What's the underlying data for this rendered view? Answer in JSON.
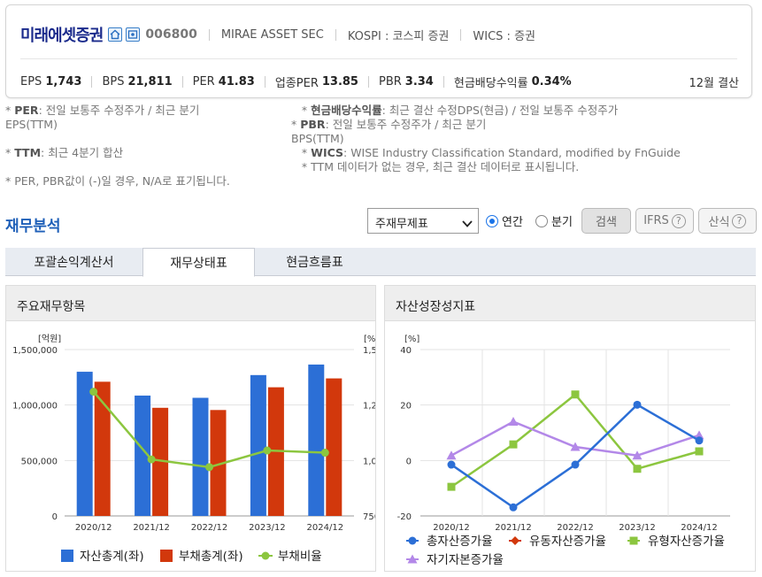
{
  "company": {
    "name": "미래에셋증권",
    "code": "006800",
    "name_en": "MIRAE ASSET SEC",
    "market": "KOSPI : 코스피 증권",
    "wics": "WICS : 증권"
  },
  "metrics": [
    {
      "label": "EPS",
      "value": "1,743"
    },
    {
      "label": "BPS",
      "value": "21,811"
    },
    {
      "label": "PER",
      "value": "41.83"
    },
    {
      "label": "업종PER",
      "value": "13.85"
    },
    {
      "label": "PBR",
      "value": "3.34"
    },
    {
      "label": "현금배당수익률",
      "value": "0.34%"
    }
  ],
  "settlement": "12월 결산",
  "notes": {
    "left": [
      {
        "star": "* ",
        "key": "PER",
        "text": ": 전일 보통주 수정주가 / 최근 분기"
      },
      {
        "star": "",
        "key": "",
        "text": "EPS(TTM)"
      },
      {
        "star": "",
        "key": "",
        "text": ""
      },
      {
        "star": "* ",
        "key": "TTM",
        "text": ": 최근 4분기 합산"
      },
      {
        "star": "",
        "key": "",
        "text": ""
      },
      {
        "star": "",
        "key": "",
        "text": "* PER, PBR값이 (-)일 경우, N/A로 표기됩니다."
      }
    ],
    "right": [
      {
        "star": "   * ",
        "key": "현금배당수익률",
        "text": ": 최근 결산 수정DPS(현금) / 전일 보통주 수정주가"
      },
      {
        "star": "* ",
        "key": "PBR",
        "text": ": 전일 보통주 수정주가 / 최근 분기"
      },
      {
        "star": "",
        "key": "",
        "text": "BPS(TTM)"
      },
      {
        "star": "   * ",
        "key": "WICS",
        "text": ": WISE Industry Classification Standard, modified by FnGuide"
      },
      {
        "star": "",
        "key": "",
        "text": "   * TTM 데이터가 없는 경우, 최근 결산 데이터로 표시됩니다."
      }
    ]
  },
  "section_title": "재무분석",
  "controls": {
    "select_value": "주재무제표",
    "radio_annual": "연간",
    "radio_quarter": "분기",
    "search": "검색",
    "ifrs": "IFRS",
    "formula": "산식",
    "help": "?"
  },
  "tabs": [
    "포괄손익계산서",
    "재무상태표",
    "현금흐름표"
  ],
  "active_tab": 1,
  "panels": {
    "left_title": "주요재무항목",
    "right_title": "자산성장성지표"
  },
  "chart_data": [
    {
      "type": "bar",
      "title": "주요재무항목",
      "categories": [
        "2020/12",
        "2021/12",
        "2022/12",
        "2023/12",
        "2024/12"
      ],
      "ylabel_left": "[억원]",
      "ylabel_right": "[%]",
      "yticks_left": [
        "0",
        "500,000",
        "1,000,000",
        "1,500,000"
      ],
      "yticks_right": [
        "750",
        "1,00",
        "1,25",
        "1,50"
      ],
      "ylim_left": [
        0,
        1500000
      ],
      "ylim_right": [
        750,
        1500
      ],
      "series": [
        {
          "name": "자산총계(좌)",
          "type": "bar",
          "color": "#2c6fd6",
          "values": [
            1300000,
            1085000,
            1065000,
            1270000,
            1365000
          ]
        },
        {
          "name": "부채총계(좌)",
          "type": "bar",
          "color": "#d2380c",
          "values": [
            1210000,
            975000,
            955000,
            1160000,
            1240000
          ]
        },
        {
          "name": "부채비율",
          "type": "line",
          "color": "#8cc63f",
          "values": [
            1310,
            1005,
            970,
            1045,
            1035
          ]
        }
      ],
      "legend": "bottom"
    },
    {
      "type": "line",
      "title": "자산성장성지표",
      "categories": [
        "2020/12",
        "2021/12",
        "2022/12",
        "2023/12",
        "2024/12"
      ],
      "ylabel": "[%]",
      "yticks": [
        "-20",
        "0",
        "20",
        "40"
      ],
      "ylim": [
        -20,
        40
      ],
      "series": [
        {
          "name": "총자산증가율",
          "color": "#2c6fd6",
          "marker": "circle",
          "values": [
            -1.5,
            -16.9,
            -1.5,
            20.1,
            7.2
          ]
        },
        {
          "name": "유동자산증가율",
          "color": "#d2380c",
          "marker": "diamond",
          "values": [
            null,
            null,
            null,
            null,
            null
          ]
        },
        {
          "name": "유형자산증가율",
          "color": "#8cc63f",
          "marker": "square",
          "values": [
            -9.5,
            5.8,
            23.8,
            -3.0,
            3.3
          ]
        },
        {
          "name": "자기자본증가율",
          "color": "#b388e8",
          "marker": "triangle",
          "values": [
            1.8,
            14.0,
            4.9,
            1.8,
            9.1
          ]
        }
      ],
      "legend": "bottom"
    }
  ]
}
